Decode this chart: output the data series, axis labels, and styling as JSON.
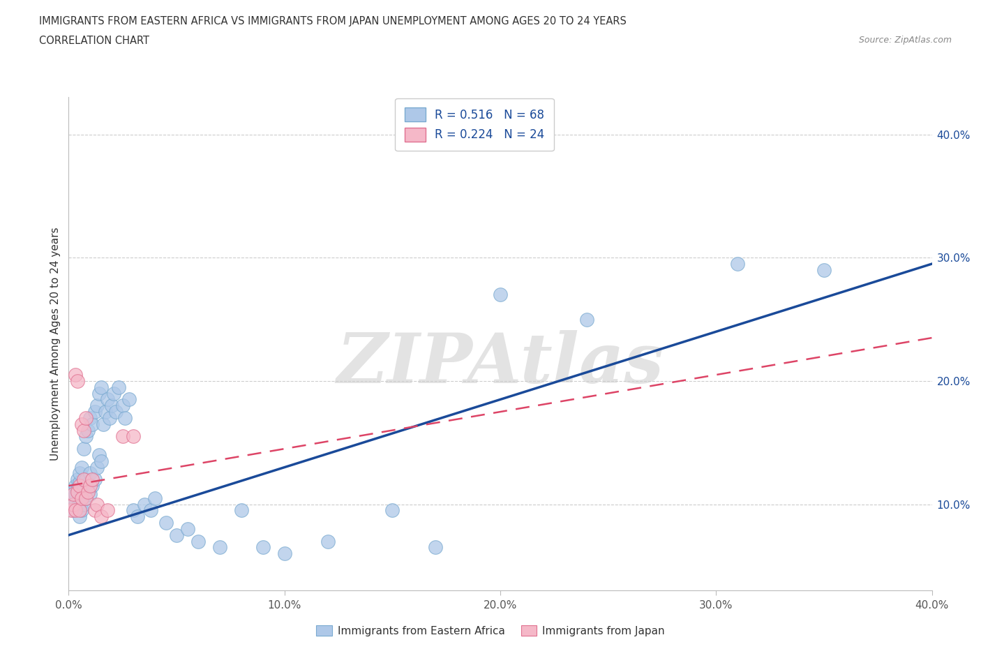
{
  "title_line1": "IMMIGRANTS FROM EASTERN AFRICA VS IMMIGRANTS FROM JAPAN UNEMPLOYMENT AMONG AGES 20 TO 24 YEARS",
  "title_line2": "CORRELATION CHART",
  "source_text": "Source: ZipAtlas.com",
  "ylabel": "Unemployment Among Ages 20 to 24 years",
  "xlim": [
    0.0,
    0.4
  ],
  "ylim": [
    0.03,
    0.43
  ],
  "xticks": [
    0.0,
    0.1,
    0.2,
    0.3,
    0.4
  ],
  "yticks_right": [
    0.1,
    0.2,
    0.3,
    0.4
  ],
  "blue_color": "#aec8e8",
  "blue_edge_color": "#7aaad0",
  "pink_color": "#f5b8c8",
  "pink_edge_color": "#e07090",
  "blue_line_color": "#1a4a99",
  "pink_line_color": "#dd4466",
  "watermark": "ZIPAtlas",
  "series1_label": "Immigrants from Eastern Africa",
  "series2_label": "Immigrants from Japan",
  "blue_x": [
    0.001,
    0.002,
    0.002,
    0.003,
    0.003,
    0.003,
    0.004,
    0.004,
    0.004,
    0.005,
    0.005,
    0.005,
    0.005,
    0.006,
    0.006,
    0.006,
    0.007,
    0.007,
    0.007,
    0.008,
    0.008,
    0.008,
    0.009,
    0.009,
    0.01,
    0.01,
    0.01,
    0.011,
    0.011,
    0.012,
    0.012,
    0.013,
    0.013,
    0.014,
    0.014,
    0.015,
    0.015,
    0.016,
    0.017,
    0.018,
    0.019,
    0.02,
    0.021,
    0.022,
    0.023,
    0.025,
    0.026,
    0.028,
    0.03,
    0.032,
    0.035,
    0.038,
    0.04,
    0.045,
    0.05,
    0.055,
    0.06,
    0.07,
    0.08,
    0.09,
    0.1,
    0.12,
    0.15,
    0.17,
    0.2,
    0.24,
    0.31,
    0.35
  ],
  "blue_y": [
    0.11,
    0.095,
    0.105,
    0.1,
    0.108,
    0.115,
    0.098,
    0.112,
    0.12,
    0.09,
    0.105,
    0.118,
    0.125,
    0.095,
    0.11,
    0.13,
    0.1,
    0.115,
    0.145,
    0.105,
    0.12,
    0.155,
    0.112,
    0.16,
    0.108,
    0.125,
    0.17,
    0.115,
    0.165,
    0.12,
    0.175,
    0.13,
    0.18,
    0.14,
    0.19,
    0.135,
    0.195,
    0.165,
    0.175,
    0.185,
    0.17,
    0.18,
    0.19,
    0.175,
    0.195,
    0.18,
    0.17,
    0.185,
    0.095,
    0.09,
    0.1,
    0.095,
    0.105,
    0.085,
    0.075,
    0.08,
    0.07,
    0.065,
    0.095,
    0.065,
    0.06,
    0.07,
    0.095,
    0.065,
    0.27,
    0.25,
    0.295,
    0.29
  ],
  "pink_x": [
    0.001,
    0.002,
    0.002,
    0.003,
    0.003,
    0.004,
    0.004,
    0.005,
    0.005,
    0.006,
    0.006,
    0.007,
    0.007,
    0.008,
    0.008,
    0.009,
    0.01,
    0.011,
    0.012,
    0.013,
    0.015,
    0.018,
    0.025,
    0.03
  ],
  "pink_y": [
    0.095,
    0.1,
    0.108,
    0.095,
    0.205,
    0.11,
    0.2,
    0.095,
    0.115,
    0.105,
    0.165,
    0.12,
    0.16,
    0.105,
    0.17,
    0.11,
    0.115,
    0.12,
    0.095,
    0.1,
    0.09,
    0.095,
    0.155,
    0.155
  ],
  "blue_line_x0": 0.0,
  "blue_line_y0": 0.075,
  "blue_line_x1": 0.4,
  "blue_line_y1": 0.295,
  "pink_line_x0": 0.0,
  "pink_line_y0": 0.115,
  "pink_line_x1": 0.4,
  "pink_line_y1": 0.235
}
